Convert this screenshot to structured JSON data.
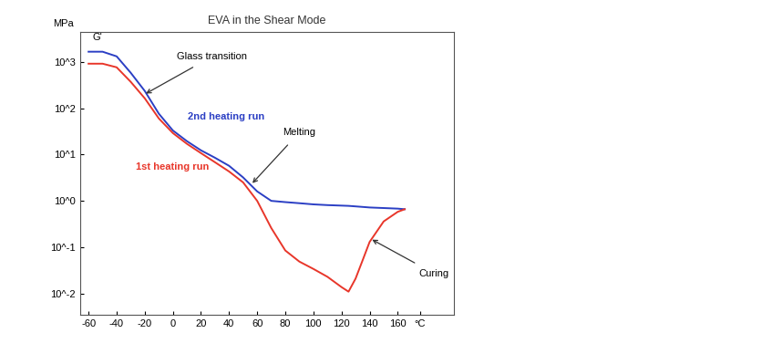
{
  "chart_data": {
    "type": "line",
    "title": "EVA in the Shear Mode",
    "y_label": "MPa",
    "log": "y",
    "grid": false,
    "xlim": [
      -66,
      200
    ],
    "xticks": [
      -60,
      -40,
      -20,
      0,
      20,
      40,
      60,
      80,
      100,
      120,
      140,
      160,
      {
        "value": 176,
        "label": "°C"
      }
    ],
    "ylim": [
      0.0035,
      4500
    ],
    "yticks": [
      {
        "value": 0.01,
        "label": "10^-2"
      },
      {
        "value": 0.1,
        "label": "10^-1"
      },
      {
        "value": 1,
        "label": "10^0"
      },
      {
        "value": 10,
        "label": "10^1"
      },
      {
        "value": 100,
        "label": "10^2"
      },
      {
        "value": 1000,
        "label": "10^3"
      }
    ],
    "x": [
      -60,
      -50,
      -40,
      -30,
      -20,
      -10,
      0,
      10,
      20,
      30,
      40,
      50,
      60,
      70,
      80,
      90,
      100,
      110,
      120,
      125,
      130,
      135,
      140,
      150,
      160,
      165
    ],
    "series": [
      {
        "name": "2nd heating run",
        "color": "#2b3fc4",
        "values": [
          1650,
          1650,
          1310,
          580,
          235,
          76,
          33,
          19.4,
          12.3,
          8.5,
          5.7,
          3.2,
          1.6,
          1.0,
          0.94,
          0.89,
          0.84,
          0.81,
          0.79,
          0.78,
          0.76,
          0.74,
          0.72,
          0.7,
          0.68,
          0.66
        ]
      },
      {
        "name": "1st heating run",
        "color": "#e8362a",
        "values": [
          910,
          910,
          760,
          370,
          163,
          60,
          29,
          17,
          10.7,
          6.8,
          4.3,
          2.5,
          1.0,
          0.26,
          0.085,
          0.049,
          0.034,
          0.023,
          0.0138,
          0.011,
          0.021,
          0.052,
          0.13,
          0.36,
          0.58,
          0.66
        ]
      }
    ],
    "annotations": [
      {
        "text": "G'",
        "x": -54,
        "y": 3300,
        "color": "#000000"
      },
      {
        "text": "Glass transition",
        "x": 28,
        "y": 1300,
        "color": "#000000",
        "arrow_x": -20,
        "arrow_y": 200
      },
      {
        "text": "2nd heating run",
        "x": 38,
        "y": 66,
        "color": "#2b3fc4"
      },
      {
        "text": "Melting",
        "x": 90,
        "y": 30,
        "color": "#000000",
        "arrow_x": 56,
        "arrow_y": 2.3
      },
      {
        "text": "1st heating run",
        "x": 0,
        "y": 5.5,
        "color": "#e8362a"
      },
      {
        "text": "Curing",
        "x": 186,
        "y": 0.027,
        "color": "#000000",
        "arrow_x": 141,
        "arrow_y": 0.15
      }
    ]
  }
}
